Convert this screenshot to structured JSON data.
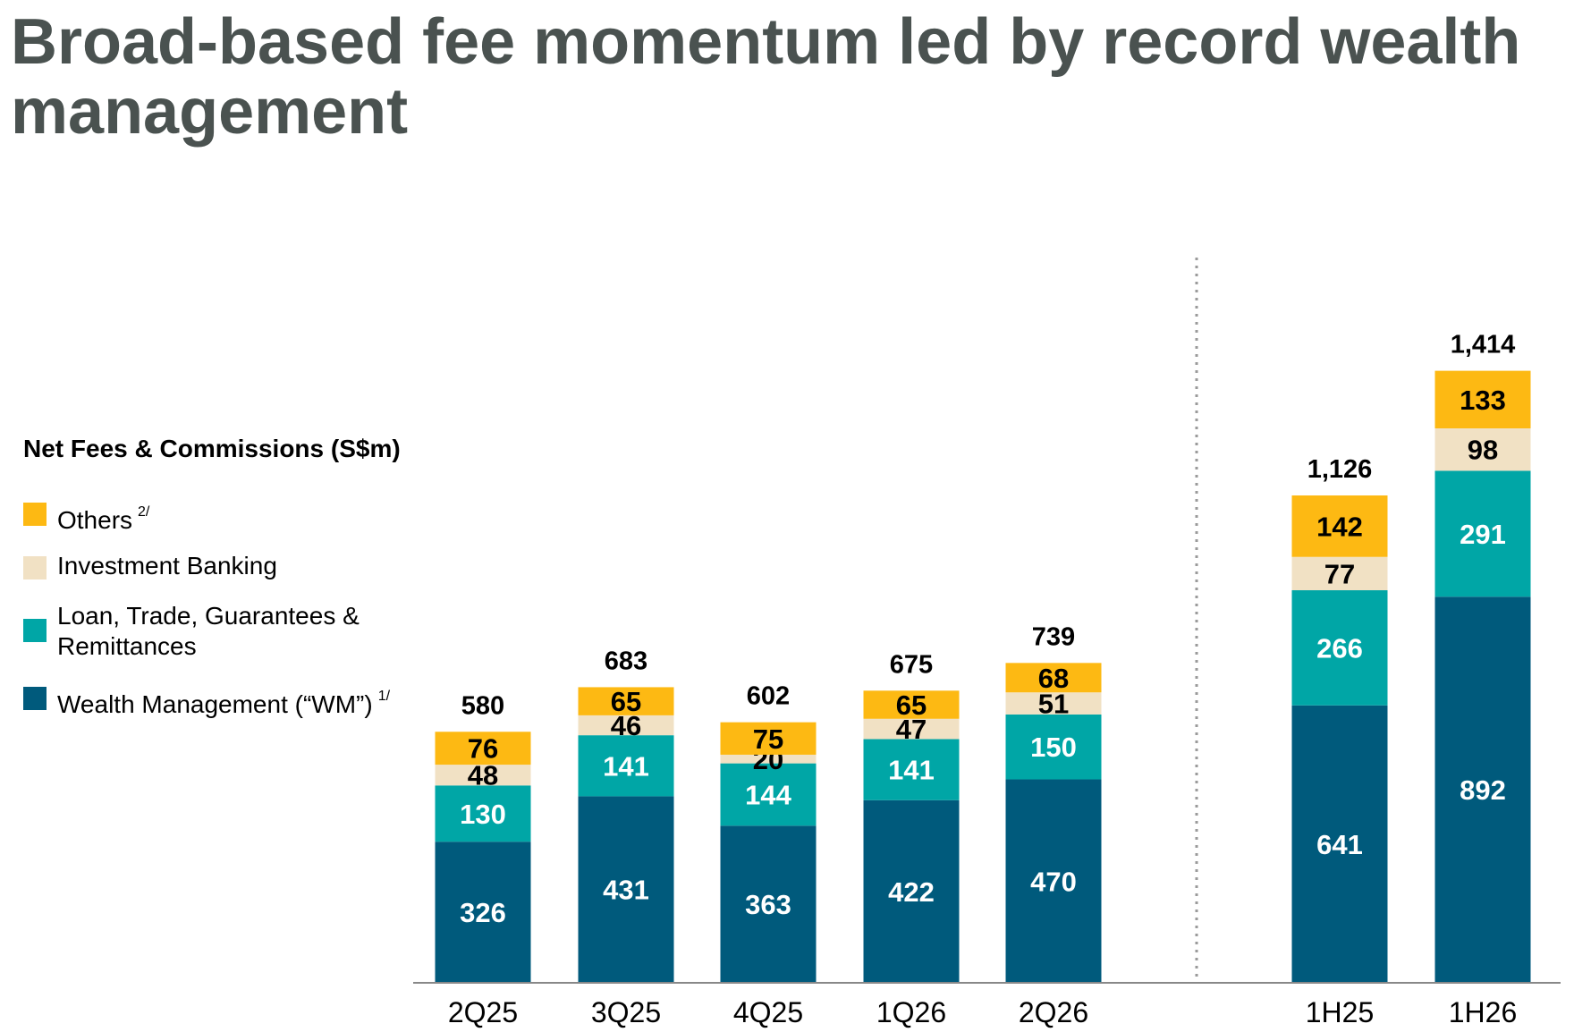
{
  "title": "Broad-based fee momentum led by record wealth management",
  "legend": {
    "title": "Net Fees & Commissions (S$m)",
    "items": [
      {
        "label": "Others",
        "note": "2/",
        "color": "#FDB913"
      },
      {
        "label": "Investment Banking",
        "note": "",
        "color": "#F1E1C4"
      },
      {
        "label": "Loan, Trade, Guarantees & Remittances",
        "note": "",
        "color": "#00A6A6"
      },
      {
        "label": "Wealth Management (“WM”)",
        "note": "1/",
        "color": "#005A7C"
      }
    ]
  },
  "chart_data": {
    "type": "bar",
    "stacked": true,
    "title": "Net Fees & Commissions (S$m)",
    "categories": [
      "2Q25",
      "3Q25",
      "4Q25",
      "1Q26",
      "2Q26",
      "1H25",
      "1H26"
    ],
    "totals": [
      "580",
      "683",
      "602",
      "675",
      "739",
      "1,126",
      "1,414"
    ],
    "series": [
      {
        "name": "Wealth Management (“WM”)",
        "color": "#005A7C",
        "label_color": "#ffffff",
        "values": [
          326,
          431,
          363,
          422,
          470,
          641,
          892
        ]
      },
      {
        "name": "Loan, Trade, Guarantees & Remittances",
        "color": "#00A6A6",
        "label_color": "#ffffff",
        "values": [
          130,
          141,
          144,
          141,
          150,
          266,
          291
        ]
      },
      {
        "name": "Investment Banking",
        "color": "#F1E1C4",
        "label_color": "#000000",
        "values": [
          48,
          46,
          20,
          47,
          51,
          77,
          98
        ]
      },
      {
        "name": "Others",
        "color": "#FDB913",
        "label_color": "#000000",
        "values": [
          76,
          65,
          75,
          65,
          68,
          142,
          133
        ]
      }
    ],
    "separator_after": "2Q26",
    "grid": false,
    "legend_placement": "left"
  }
}
